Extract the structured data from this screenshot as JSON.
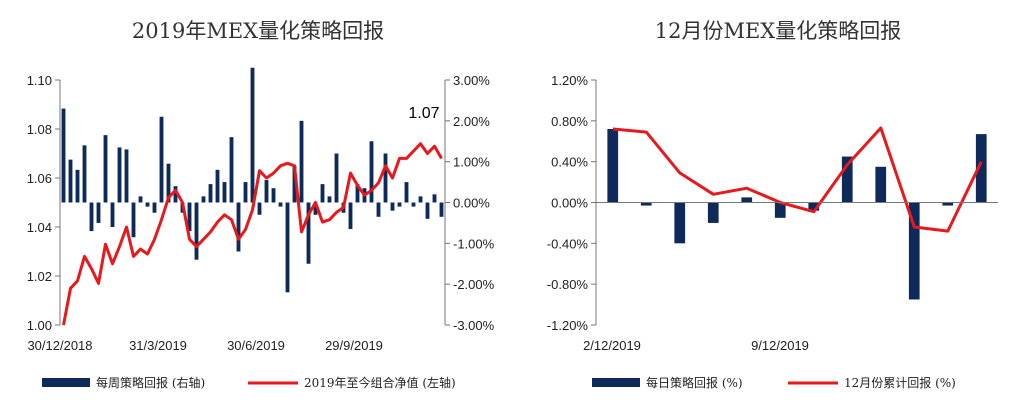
{
  "colors": {
    "bar": "#0d2a5a",
    "line": "#e8191c",
    "axis": "#777777"
  },
  "chart_data": [
    {
      "type": "bar+line",
      "title": "2019年MEX量化策略回报",
      "left_axis": {
        "range": [
          1.0,
          1.1
        ],
        "ticks": [
          "1.10",
          "1.08",
          "1.06",
          "1.04",
          "1.02",
          "1.00"
        ]
      },
      "right_axis": {
        "range": [
          -3.0,
          3.0
        ],
        "ticks": [
          "3.00%",
          "2.00%",
          "1.00%",
          "0.00%",
          "-1.00%",
          "-2.00%",
          "-3.00%"
        ]
      },
      "x_ticks": [
        "30/12/2018",
        "31/3/2019",
        "30/6/2019",
        "29/9/2019"
      ],
      "annotation": "1.07",
      "series": [
        {
          "name": "每周策略回报 (右轴)",
          "kind": "bar",
          "axis": "right",
          "values": [
            2.3,
            1.05,
            0.8,
            1.4,
            -0.7,
            -0.5,
            1.65,
            -0.6,
            1.35,
            1.3,
            -0.85,
            0.15,
            -0.1,
            -0.25,
            2.1,
            0.95,
            0.4,
            -0.25,
            -0.7,
            -1.4,
            0.15,
            0.45,
            0.8,
            0.5,
            1.6,
            -1.2,
            0.5,
            3.3,
            -0.3,
            0.55,
            0.35,
            -0.1,
            -2.2,
            0.9,
            2.0,
            -1.5,
            -0.3,
            0.45,
            0.15,
            1.2,
            -0.25,
            -0.65,
            0.45,
            0.35,
            1.5,
            -0.35,
            1.2,
            -0.2,
            -0.1,
            0.5,
            -0.1,
            0.15,
            -0.4,
            0.2,
            -0.35
          ]
        },
        {
          "name": "2019年至今组合净值 (左轴)",
          "kind": "line",
          "axis": "left",
          "values": [
            1.0,
            1.015,
            1.018,
            1.028,
            1.023,
            1.017,
            1.033,
            1.025,
            1.032,
            1.04,
            1.028,
            1.031,
            1.029,
            1.035,
            1.043,
            1.052,
            1.055,
            1.05,
            1.035,
            1.032,
            1.035,
            1.038,
            1.042,
            1.045,
            1.043,
            1.035,
            1.039,
            1.047,
            1.063,
            1.06,
            1.062,
            1.065,
            1.066,
            1.065,
            1.038,
            1.045,
            1.05,
            1.042,
            1.043,
            1.046,
            1.048,
            1.062,
            1.057,
            1.053,
            1.055,
            1.058,
            1.065,
            1.06,
            1.068,
            1.068,
            1.071,
            1.074,
            1.07,
            1.073,
            1.068
          ]
        }
      ]
    },
    {
      "type": "bar+line",
      "title": "12月份MEX量化策略回报",
      "y_axis": {
        "range": [
          -1.2,
          1.2
        ],
        "ticks": [
          "1.20%",
          "0.80%",
          "0.40%",
          "0.00%",
          "-0.40%",
          "-0.80%",
          "-1.20%"
        ]
      },
      "x_ticks": [
        "2/12/2019",
        "9/12/2019"
      ],
      "series": [
        {
          "name": "每日策略回报 (%)",
          "kind": "bar",
          "values": [
            0.72,
            -0.03,
            -0.4,
            -0.2,
            0.05,
            -0.15,
            -0.08,
            0.45,
            0.35,
            -0.95,
            -0.03,
            0.67
          ]
        },
        {
          "name": "12月份累计回报 (%)",
          "kind": "line",
          "values": [
            0.72,
            0.69,
            0.29,
            0.08,
            0.14,
            0.0,
            -0.09,
            0.37,
            0.73,
            -0.24,
            -0.28,
            0.4
          ]
        }
      ]
    }
  ]
}
